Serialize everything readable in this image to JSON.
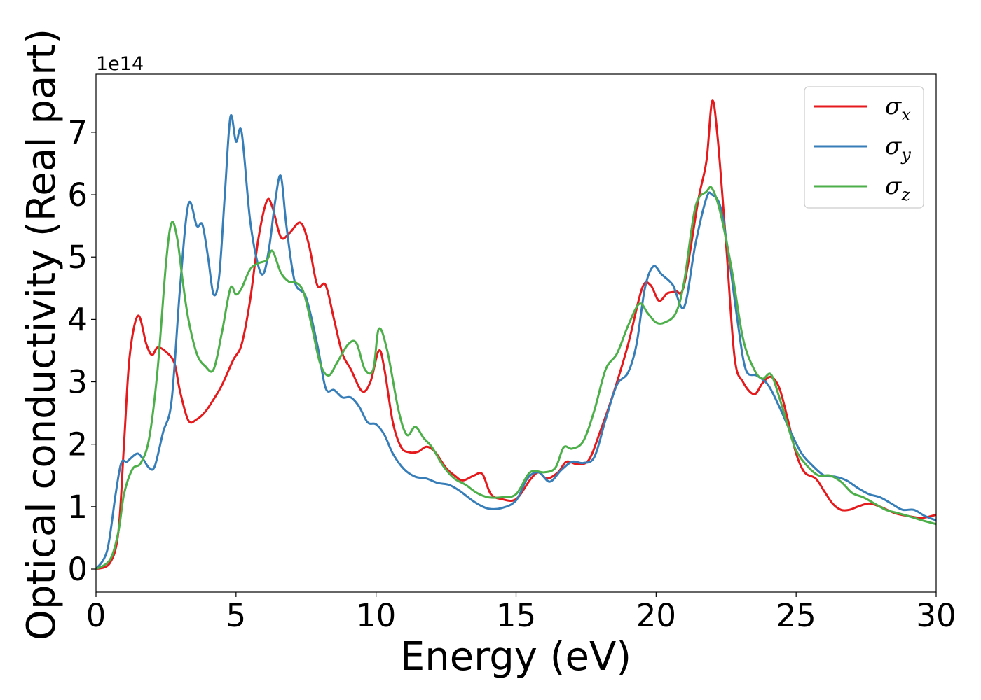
{
  "chart_data": {
    "type": "line",
    "xlabel": "Energy (eV)",
    "ylabel": "Optical conductivity (Real part)",
    "y_offset_label": "1e14",
    "y_scale_factor": 100000000000000.0,
    "xlim": [
      0,
      30
    ],
    "ylim": [
      -0.37,
      7.93
    ],
    "x_ticks": [
      0,
      5,
      10,
      15,
      20,
      25,
      30
    ],
    "x_tick_labels": [
      "0",
      "5",
      "10",
      "15",
      "20",
      "25",
      "30"
    ],
    "y_ticks": [
      0,
      1,
      2,
      3,
      4,
      5,
      6,
      7
    ],
    "y_tick_labels": [
      "0",
      "1",
      "2",
      "3",
      "4",
      "5",
      "6",
      "7"
    ],
    "grid": false,
    "legend_position": "top-right",
    "series": [
      {
        "name": "σx",
        "legend_symbol": "σ",
        "legend_subscript": "x",
        "color": "#e41a1c",
        "x": [
          0,
          0.5,
          0.8,
          1.0,
          1.2,
          1.5,
          1.8,
          2.0,
          2.2,
          2.5,
          2.8,
          3.0,
          3.3,
          3.6,
          3.9,
          4.2,
          4.5,
          4.9,
          5.2,
          5.5,
          5.8,
          6.1,
          6.3,
          6.6,
          6.9,
          7.3,
          7.6,
          7.9,
          8.2,
          8.5,
          8.8,
          9.1,
          9.5,
          9.8,
          10.1,
          10.3,
          10.6,
          10.9,
          11.2,
          11.5,
          11.8,
          12.1,
          12.5,
          12.8,
          13.1,
          13.5,
          13.8,
          14.1,
          14.5,
          15.0,
          15.5,
          15.8,
          16.1,
          16.5,
          16.8,
          17.2,
          17.6,
          18.0,
          18.5,
          19.0,
          19.5,
          19.8,
          20.1,
          20.4,
          20.7,
          21.0,
          21.5,
          21.8,
          22.0,
          22.2,
          22.5,
          22.8,
          23.1,
          23.5,
          23.8,
          24.1,
          24.4,
          24.7,
          25.0,
          25.3,
          25.7,
          26.0,
          26.3,
          26.6,
          26.9,
          27.2,
          27.6,
          28.0,
          28.5,
          29.0,
          29.5,
          30.0
        ],
        "values": [
          0,
          0.1,
          0.6,
          2.0,
          3.4,
          4.06,
          3.6,
          3.43,
          3.55,
          3.48,
          3.3,
          2.85,
          2.38,
          2.4,
          2.52,
          2.72,
          2.95,
          3.35,
          3.6,
          4.3,
          5.3,
          5.9,
          5.8,
          5.32,
          5.38,
          5.55,
          5.2,
          4.55,
          4.55,
          4.0,
          3.45,
          3.2,
          2.85,
          3.0,
          3.5,
          3.2,
          2.35,
          1.95,
          1.87,
          1.88,
          1.96,
          1.88,
          1.62,
          1.5,
          1.42,
          1.5,
          1.52,
          1.2,
          1.12,
          1.12,
          1.43,
          1.55,
          1.45,
          1.55,
          1.72,
          1.68,
          1.75,
          2.2,
          2.85,
          3.6,
          4.5,
          4.55,
          4.3,
          4.42,
          4.45,
          4.55,
          5.9,
          6.55,
          7.5,
          6.9,
          5.2,
          3.4,
          3.0,
          2.8,
          2.98,
          3.08,
          2.9,
          2.4,
          1.85,
          1.55,
          1.45,
          1.25,
          1.05,
          0.95,
          0.95,
          1.0,
          1.05,
          1.0,
          0.9,
          0.85,
          0.82,
          0.87
        ]
      },
      {
        "name": "σy",
        "legend_symbol": "σ",
        "legend_subscript": "y",
        "color": "#377eb8",
        "x": [
          0,
          0.4,
          0.7,
          0.9,
          1.1,
          1.3,
          1.5,
          1.7,
          1.9,
          2.1,
          2.4,
          2.7,
          3.0,
          3.3,
          3.6,
          3.8,
          4.0,
          4.2,
          4.4,
          4.6,
          4.8,
          5.0,
          5.2,
          5.5,
          5.8,
          6.0,
          6.2,
          6.4,
          6.6,
          6.8,
          7.1,
          7.5,
          7.9,
          8.2,
          8.5,
          8.8,
          9.1,
          9.4,
          9.7,
          10.0,
          10.3,
          10.6,
          11.0,
          11.4,
          11.8,
          12.2,
          12.6,
          13.0,
          13.5,
          14.0,
          14.5,
          15.0,
          15.4,
          15.8,
          16.2,
          16.6,
          17.0,
          17.4,
          17.8,
          18.2,
          18.6,
          19.0,
          19.3,
          19.6,
          19.9,
          20.2,
          20.6,
          21.0,
          21.4,
          21.8,
          22.0,
          22.3,
          22.6,
          22.9,
          23.2,
          23.6,
          24.0,
          24.4,
          24.8,
          25.2,
          25.6,
          26.0,
          26.4,
          26.8,
          27.2,
          27.6,
          28.0,
          28.4,
          28.8,
          29.2,
          29.6,
          30.0
        ],
        "values": [
          0,
          0.3,
          1.2,
          1.7,
          1.72,
          1.8,
          1.85,
          1.75,
          1.62,
          1.65,
          2.2,
          2.7,
          4.5,
          5.85,
          5.5,
          5.52,
          5.0,
          4.4,
          4.7,
          6.0,
          7.25,
          6.85,
          7.0,
          5.6,
          4.85,
          4.75,
          5.2,
          5.9,
          6.3,
          5.5,
          4.6,
          4.35,
          3.6,
          2.9,
          2.87,
          2.75,
          2.75,
          2.6,
          2.35,
          2.32,
          2.15,
          1.85,
          1.6,
          1.48,
          1.45,
          1.38,
          1.35,
          1.25,
          1.08,
          0.97,
          0.98,
          1.1,
          1.45,
          1.55,
          1.4,
          1.58,
          1.72,
          1.7,
          1.8,
          2.4,
          2.95,
          3.15,
          3.6,
          4.5,
          4.85,
          4.72,
          4.55,
          4.2,
          5.2,
          5.95,
          6.0,
          5.8,
          5.0,
          4.0,
          3.2,
          3.1,
          2.95,
          2.6,
          2.2,
          1.85,
          1.65,
          1.5,
          1.48,
          1.42,
          1.3,
          1.2,
          1.15,
          1.05,
          0.95,
          0.95,
          0.85,
          0.78
        ]
      },
      {
        "name": "σz",
        "legend_symbol": "σ",
        "legend_subscript": "z",
        "color": "#4daf4a",
        "x": [
          0,
          0.5,
          0.8,
          1.0,
          1.3,
          1.6,
          1.9,
          2.2,
          2.5,
          2.7,
          2.9,
          3.1,
          3.3,
          3.6,
          3.9,
          4.2,
          4.5,
          4.8,
          5.0,
          5.2,
          5.5,
          5.8,
          6.1,
          6.3,
          6.6,
          6.9,
          7.1,
          7.4,
          7.7,
          8.0,
          8.3,
          8.6,
          9.0,
          9.3,
          9.6,
          9.9,
          10.1,
          10.4,
          10.8,
          11.1,
          11.4,
          11.7,
          12.0,
          12.4,
          12.8,
          13.2,
          13.6,
          14.0,
          14.5,
          15.0,
          15.5,
          16.0,
          16.4,
          16.7,
          17.0,
          17.4,
          17.8,
          18.2,
          18.6,
          19.0,
          19.4,
          19.7,
          20.0,
          20.3,
          20.7,
          21.0,
          21.4,
          21.8,
          22.0,
          22.3,
          22.7,
          23.1,
          23.5,
          23.8,
          24.1,
          24.4,
          24.7,
          25.0,
          25.4,
          25.8,
          26.2,
          26.6,
          27.0,
          27.4,
          27.8,
          28.2,
          28.6,
          29.0,
          29.5,
          30.0
        ],
        "values": [
          0,
          0.15,
          0.6,
          1.2,
          1.6,
          1.7,
          2.1,
          3.2,
          4.9,
          5.55,
          5.3,
          4.6,
          4.0,
          3.45,
          3.25,
          3.2,
          3.8,
          4.5,
          4.4,
          4.5,
          4.8,
          4.9,
          4.95,
          5.1,
          4.75,
          4.6,
          4.6,
          4.45,
          3.9,
          3.3,
          3.1,
          3.3,
          3.6,
          3.62,
          3.2,
          3.2,
          3.85,
          3.5,
          2.55,
          2.15,
          2.28,
          2.1,
          1.95,
          1.65,
          1.45,
          1.35,
          1.22,
          1.15,
          1.15,
          1.2,
          1.55,
          1.55,
          1.62,
          1.95,
          1.93,
          2.05,
          2.55,
          3.2,
          3.45,
          3.9,
          4.25,
          4.1,
          3.95,
          3.95,
          4.1,
          4.6,
          5.8,
          6.05,
          6.1,
          5.7,
          4.8,
          3.7,
          3.2,
          3.05,
          3.12,
          2.75,
          2.3,
          1.9,
          1.65,
          1.5,
          1.5,
          1.4,
          1.22,
          1.15,
          1.05,
          0.95,
          0.9,
          0.85,
          0.78,
          0.72
        ]
      }
    ]
  }
}
